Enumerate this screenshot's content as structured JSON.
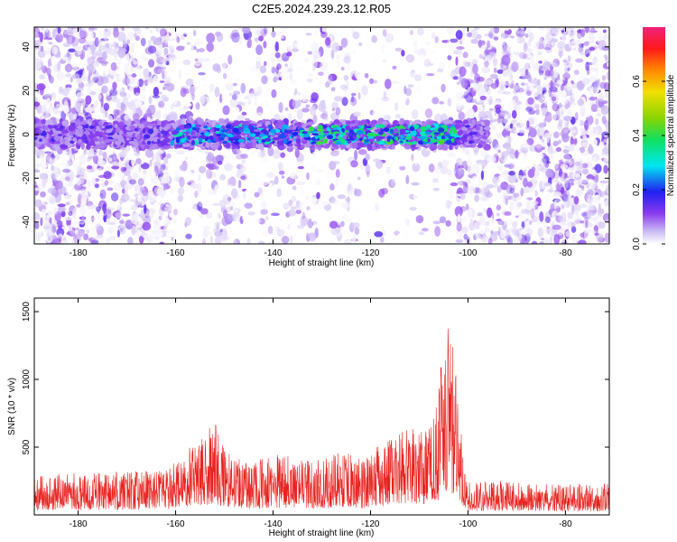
{
  "title": "C2E5.2024.239.23.12.R05",
  "chart_data": [
    {
      "type": "heatmap",
      "xlabel": "Height of straight line (km)",
      "ylabel": "Frequency (Hz)",
      "xlim": [
        -189,
        -71
      ],
      "ylim": [
        -50,
        49
      ],
      "xticks": [
        -180,
        -160,
        -140,
        -120,
        -100,
        -80
      ],
      "yticks": [
        -40,
        -20,
        0,
        20,
        40
      ],
      "colorbar": {
        "label": "Normalized spectral amplitude",
        "range": [
          0,
          0.8
        ],
        "ticks": [
          "0.0",
          "0.2",
          "0.4",
          "0.6"
        ],
        "colors": [
          "#ffffff",
          "#c9b8f2",
          "#8a3bf0",
          "#2020f0",
          "#00e6f0",
          "#10e060",
          "#8ad400",
          "#f0e000",
          "#ff8a00",
          "#ff1a1a",
          "#f0207a"
        ]
      },
      "signal_band": {
        "frequency_center": 0,
        "frequency_halfwidth": 4,
        "segments": [
          {
            "x": [
              -189,
              -161
            ],
            "amplitude": 0.18
          },
          {
            "x": [
              -161,
              -134
            ],
            "amplitude": 0.3
          },
          {
            "x": [
              -134,
              -102
            ],
            "amplitude": 0.38
          },
          {
            "x": [
              -102,
              -96
            ],
            "amplitude": 0.18
          }
        ]
      },
      "background_noise": [
        {
          "x": [
            -189,
            -161
          ],
          "density": "high"
        },
        {
          "x": [
            -161,
            -122
          ],
          "density": "medium"
        },
        {
          "x": [
            -122,
            -102
          ],
          "density": "low"
        },
        {
          "x": [
            -102,
            -71
          ],
          "density": "high"
        }
      ]
    },
    {
      "type": "line",
      "xlabel": "Height of straight line (km)",
      "ylabel": "SNR (10 * v/v)",
      "xlim": [
        -189,
        -71
      ],
      "ylim": [
        0,
        1600
      ],
      "xticks": [
        -180,
        -160,
        -140,
        -120,
        -100,
        -80
      ],
      "yticks": [
        500,
        1000,
        1500
      ],
      "color": "#e8221f",
      "envelope": {
        "x": [
          -189,
          -170,
          -162,
          -158,
          -155,
          -152,
          -150,
          -145,
          -140,
          -135,
          -130,
          -128,
          -125,
          -122,
          -120,
          -118,
          -115,
          -112,
          -110,
          -108,
          -106,
          -105,
          -104,
          -103,
          -102,
          -101,
          -100,
          -95,
          -90,
          -85,
          -80,
          -75,
          -71
        ],
        "y": [
          300,
          320,
          330,
          470,
          560,
          700,
          480,
          380,
          450,
          430,
          400,
          440,
          510,
          400,
          470,
          520,
          590,
          650,
          710,
          640,
          900,
          1400,
          1550,
          1200,
          1050,
          400,
          240,
          260,
          240,
          230,
          220,
          240,
          230
        ]
      }
    }
  ]
}
